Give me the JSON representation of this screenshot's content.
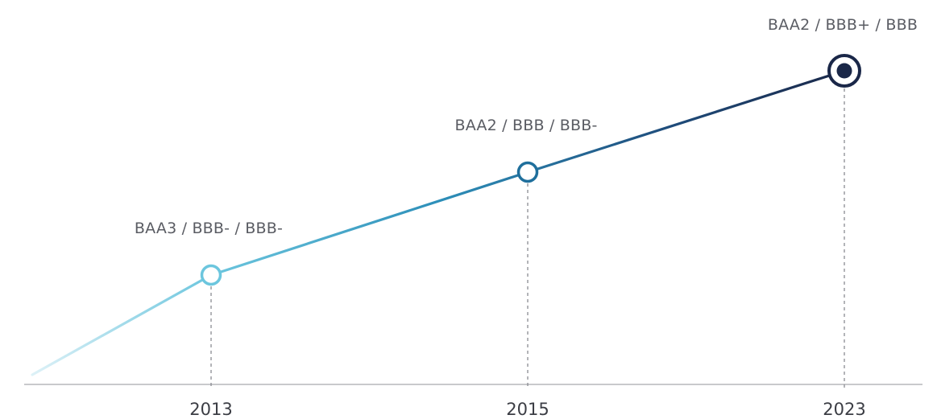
{
  "chart_data": {
    "type": "line",
    "title": "",
    "xlabel": "",
    "ylabel": "",
    "grid": false,
    "categories": [
      "2013",
      "2015",
      "2023"
    ],
    "series": [
      {
        "values": [
          1,
          2,
          3
        ],
        "point_labels": [
          "BAA3 / BBB- / BBB-",
          "BAA2 / BBB / BBB-",
          "BAA2 / BBB+ / BBB"
        ]
      }
    ],
    "colors": {
      "line_start": "#cfeaf2",
      "line_mid": "#3bb0d0",
      "line_end": "#1a2748",
      "axis": "#b5b7bc",
      "guide": "#8a8c92",
      "label": "#5a5c63",
      "tick": "#3b3d44"
    }
  }
}
